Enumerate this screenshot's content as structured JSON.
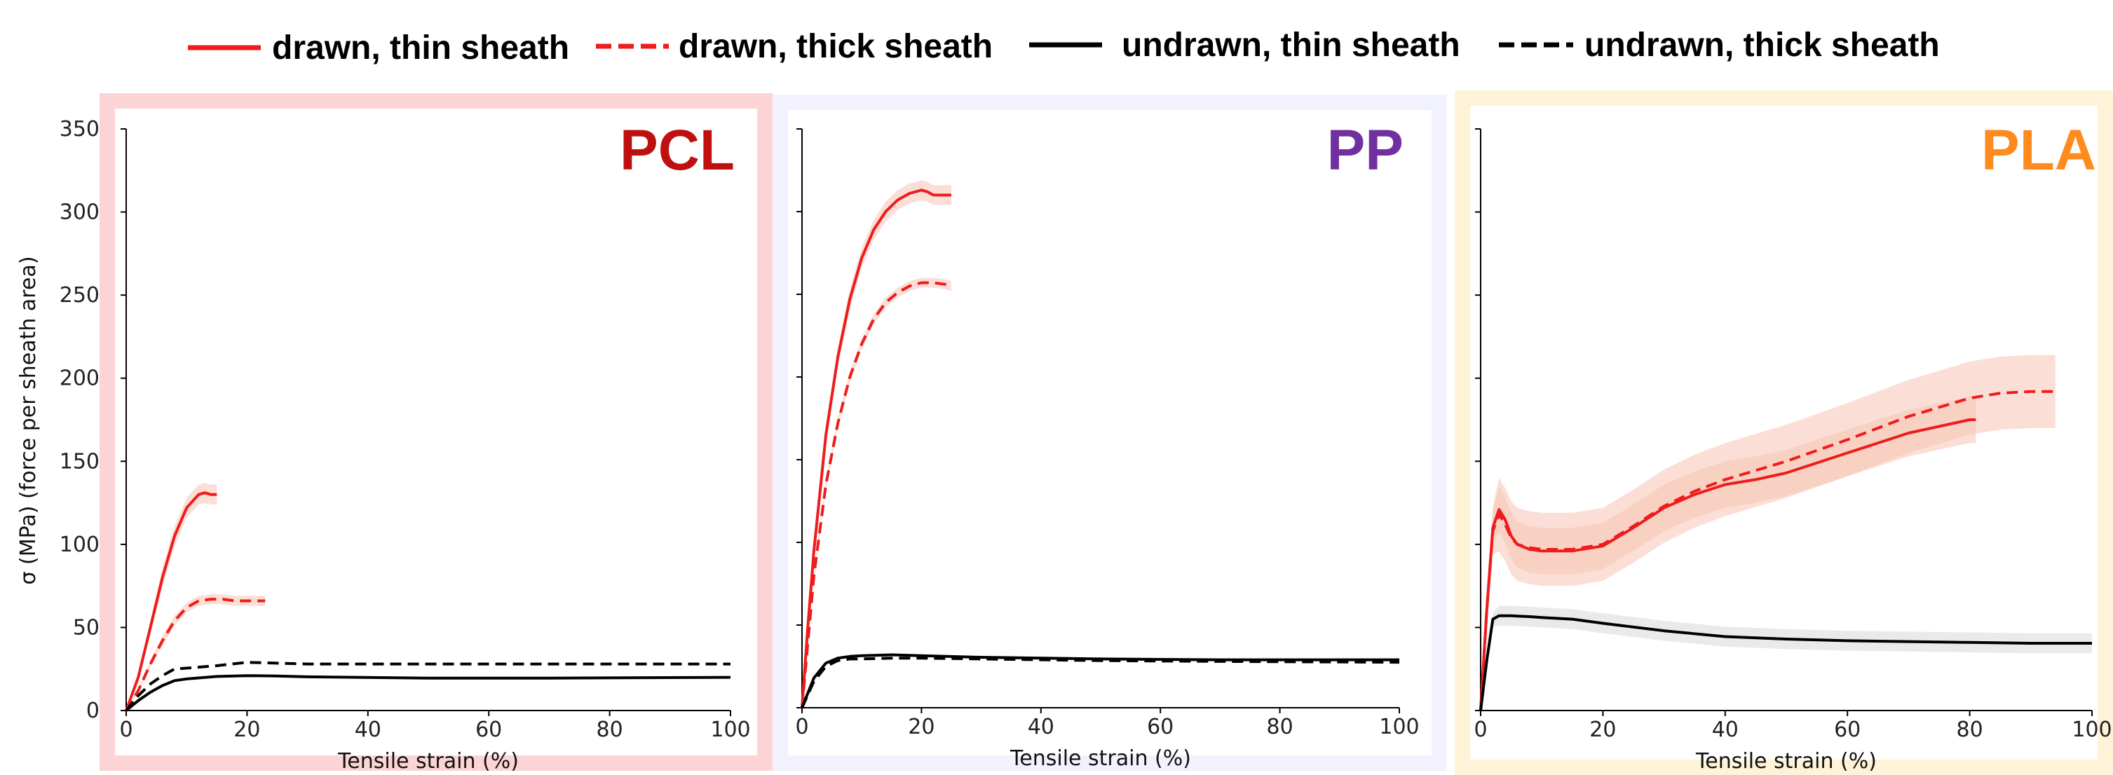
{
  "legend": [
    {
      "label": "drawn, thin sheath",
      "color": "#ee1c1c",
      "dash": "solid"
    },
    {
      "label": "drawn, thick sheath",
      "color": "#ee1c1c",
      "dash": "dashed"
    },
    {
      "label": "undrawn, thin sheath",
      "color": "#000000",
      "dash": "solid"
    },
    {
      "label": "undrawn, thick sheath",
      "color": "#000000",
      "dash": "dashed"
    }
  ],
  "ylabel": "σ (MPa) (force per sheath area)",
  "xlabel": "Tensile strain (%)",
  "colors": {
    "drawn": "#ee1c1c",
    "undrawn": "#000000",
    "drawn_band": "#f8c4b4",
    "undrawn_band": "#d8d8d8"
  },
  "chart_data": [
    {
      "type": "line",
      "title": "PCL",
      "title_color": "#bf1010",
      "frame_color": "#fdd4d6",
      "xlabel": "Tensile strain (%)",
      "ylabel": "σ (MPa) (force per sheath area)",
      "xlim": [
        0,
        100
      ],
      "ylim": [
        0,
        350
      ],
      "xticks": [
        0,
        20,
        40,
        60,
        80,
        100
      ],
      "yticks": [
        0,
        50,
        100,
        150,
        200,
        250,
        300,
        350
      ],
      "show_ytick_labels": true,
      "series": [
        {
          "name": "drawn, thin sheath",
          "style": "solid",
          "color": "#ee1c1c",
          "band": 6,
          "x": [
            0,
            2,
            4,
            6,
            8,
            10,
            12,
            13,
            14,
            15
          ],
          "y": [
            0,
            20,
            50,
            80,
            105,
            122,
            130,
            131,
            130,
            130
          ]
        },
        {
          "name": "drawn, thick sheath",
          "style": "dashed",
          "color": "#ee1c1c",
          "band": 3,
          "x": [
            0,
            2,
            4,
            6,
            8,
            10,
            12,
            14,
            16,
            18,
            20,
            23
          ],
          "y": [
            0,
            12,
            28,
            42,
            54,
            62,
            66,
            67,
            67,
            66,
            66,
            66
          ]
        },
        {
          "name": "undrawn, thin sheath",
          "style": "solid",
          "color": "#000000",
          "band": 0,
          "x": [
            0,
            2,
            4,
            6,
            8,
            10,
            15,
            20,
            25,
            30,
            50,
            70,
            100
          ],
          "y": [
            0,
            6,
            11,
            15,
            18,
            19,
            20.5,
            21,
            20.8,
            20.3,
            19.5,
            19.5,
            20
          ]
        },
        {
          "name": "undrawn, thick sheath",
          "style": "dashed",
          "color": "#000000",
          "band": 0,
          "x": [
            0,
            2,
            4,
            6,
            8,
            10,
            15,
            20,
            25,
            30,
            50,
            70,
            100
          ],
          "y": [
            0,
            9,
            16,
            21,
            25,
            25.5,
            27,
            29,
            28.5,
            28,
            28,
            28,
            28
          ]
        }
      ]
    },
    {
      "type": "line",
      "title": "PP",
      "title_color": "#7030a0",
      "frame_color": "#f2f2fe",
      "xlabel": "Tensile strain (%)",
      "ylabel": "",
      "xlim": [
        0,
        100
      ],
      "ylim": [
        0,
        350
      ],
      "xticks": [
        0,
        20,
        40,
        60,
        80,
        100
      ],
      "yticks": [
        0,
        50,
        100,
        150,
        200,
        250,
        300,
        350
      ],
      "show_ytick_labels": false,
      "series": [
        {
          "name": "drawn, thin sheath",
          "style": "solid",
          "color": "#ee1c1c",
          "band": 6,
          "x": [
            0,
            1,
            2,
            4,
            6,
            8,
            10,
            12,
            14,
            16,
            18,
            20,
            21,
            22,
            25
          ],
          "y": [
            0,
            50,
            95,
            165,
            212,
            247,
            272,
            289,
            300,
            307,
            311,
            313,
            312,
            310,
            310
          ]
        },
        {
          "name": "drawn, thick sheath",
          "style": "dashed",
          "color": "#ee1c1c",
          "band": 3,
          "x": [
            0,
            1,
            2,
            4,
            6,
            8,
            10,
            12,
            14,
            16,
            18,
            20,
            22,
            24,
            25
          ],
          "y": [
            0,
            40,
            80,
            135,
            172,
            200,
            220,
            235,
            245,
            251,
            255,
            257,
            257,
            256,
            255
          ]
        },
        {
          "name": "undrawn, thin sheath",
          "style": "solid",
          "color": "#000000",
          "band": 0,
          "x": [
            0,
            2,
            4,
            6,
            8,
            10,
            15,
            20,
            30,
            50,
            70,
            100
          ],
          "y": [
            0,
            18,
            27,
            30,
            31,
            31.5,
            32,
            31.5,
            30.5,
            29.5,
            29,
            29
          ]
        },
        {
          "name": "undrawn, thick sheath",
          "style": "dashed",
          "color": "#000000",
          "band": 0,
          "x": [
            0,
            2,
            4,
            6,
            8,
            10,
            15,
            20,
            30,
            50,
            70,
            100
          ],
          "y": [
            0,
            16,
            25,
            28.5,
            29.5,
            29.5,
            30,
            30,
            29.5,
            28.5,
            28,
            27.5
          ]
        }
      ]
    },
    {
      "type": "line",
      "title": "PLA",
      "title_color": "#ff8a1e",
      "frame_color": "#fef3d6",
      "xlabel": "Tensile strain (%)",
      "ylabel": "",
      "xlim": [
        0,
        100
      ],
      "ylim": [
        0,
        350
      ],
      "xticks": [
        0,
        20,
        40,
        60,
        80,
        100
      ],
      "yticks": [
        0,
        50,
        100,
        150,
        200,
        250,
        300,
        350
      ],
      "show_ytick_labels": false,
      "series": [
        {
          "name": "drawn, thin sheath",
          "style": "solid",
          "color": "#ee1c1c",
          "band": 14,
          "x": [
            0,
            1,
            2,
            3,
            4,
            5,
            6,
            8,
            10,
            15,
            20,
            25,
            30,
            35,
            40,
            45,
            50,
            60,
            70,
            80,
            81
          ],
          "y": [
            0,
            60,
            110,
            121,
            115,
            105,
            100,
            97,
            96,
            96,
            99,
            110,
            122,
            130,
            136,
            139,
            143,
            155,
            167,
            175,
            175
          ]
        },
        {
          "name": "drawn, thick sheath",
          "style": "dashed",
          "color": "#ee1c1c",
          "band": 22,
          "x": [
            0,
            1,
            2,
            3,
            4,
            5,
            6,
            8,
            10,
            15,
            20,
            25,
            30,
            35,
            40,
            50,
            60,
            70,
            80,
            85,
            90,
            94
          ],
          "y": [
            0,
            60,
            108,
            118,
            112,
            104,
            100,
            98,
            97,
            97,
            100,
            111,
            123,
            132,
            139,
            150,
            163,
            177,
            188,
            191,
            192,
            192
          ]
        },
        {
          "name": "undrawn, thin sheath",
          "style": "solid",
          "color": "#000000",
          "band": 6,
          "x": [
            0,
            1,
            2,
            3,
            5,
            8,
            10,
            15,
            20,
            30,
            40,
            50,
            60,
            70,
            80,
            90,
            100
          ],
          "y": [
            0,
            30,
            55,
            57,
            57,
            56.5,
            56,
            55,
            52.5,
            48,
            44.5,
            43,
            42,
            41.5,
            41,
            40.5,
            40.5
          ]
        }
      ]
    }
  ]
}
